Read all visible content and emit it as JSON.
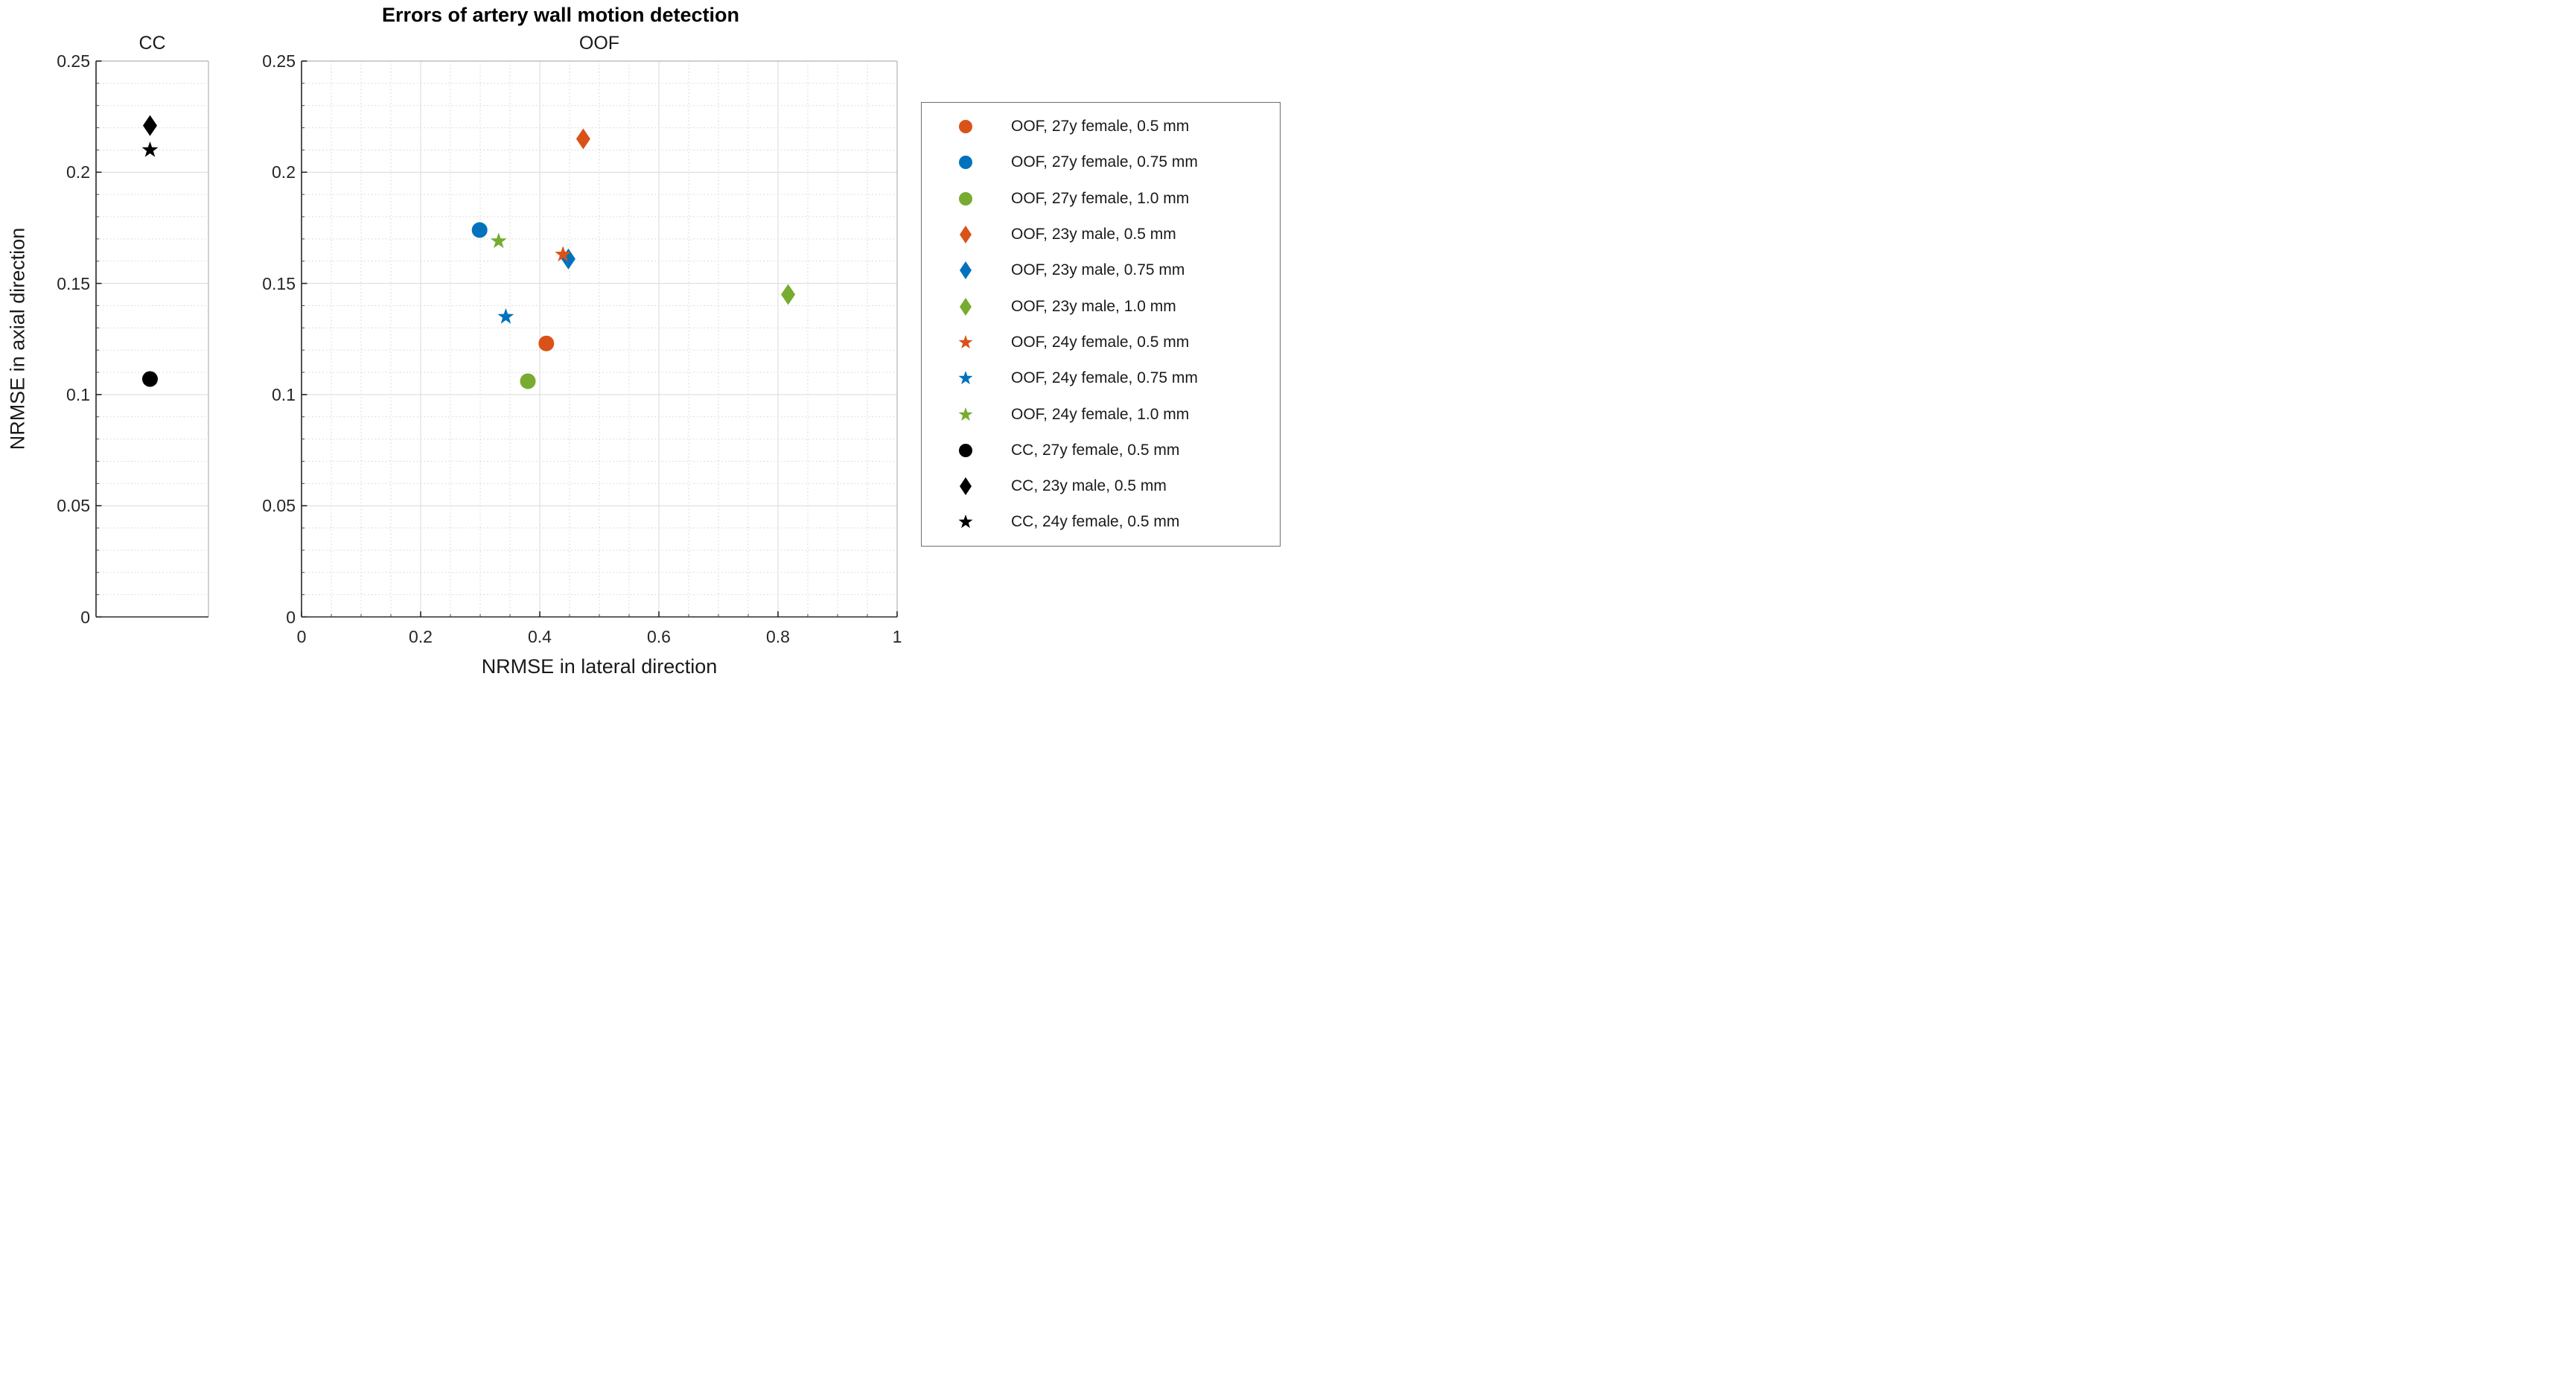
{
  "figure": {
    "title": "Errors of artery wall motion detection"
  },
  "axis_labels": {
    "x": "NRMSE in lateral direction",
    "y": "NRMSE in axial direction"
  },
  "palette": {
    "orange": "#D95319",
    "blue": "#0072BD",
    "green": "#77AC30",
    "black": "#000000"
  },
  "chart_data": [
    {
      "id": "cc",
      "type": "scatter",
      "title": "CC",
      "ylabel": "NRMSE in axial direction",
      "ylim": [
        0,
        0.25
      ],
      "yticks": [
        0,
        0.05,
        0.1,
        0.15,
        0.2,
        0.25
      ],
      "ytick_labels": [
        "0",
        "0.05",
        "0.1",
        "0.15",
        "0.2",
        "0.25"
      ],
      "y_minor_step": 0.01,
      "grid": "on",
      "points": [
        {
          "series": "CC, 27y female, 0.5 mm",
          "marker": "circle",
          "color": "#000000",
          "x": 0.48,
          "y": 0.107
        },
        {
          "series": "CC, 23y male, 0.5 mm",
          "marker": "diamond",
          "color": "#000000",
          "x": 0.48,
          "y": 0.221
        },
        {
          "series": "CC, 24y female, 0.5 mm",
          "marker": "star",
          "color": "#000000",
          "x": 0.48,
          "y": 0.21
        }
      ]
    },
    {
      "id": "oof",
      "type": "scatter",
      "title": "OOF",
      "xlabel": "NRMSE in lateral direction",
      "ylabel": "NRMSE in axial direction",
      "xlim": [
        0,
        1
      ],
      "ylim": [
        0,
        0.25
      ],
      "xticks": [
        0,
        0.2,
        0.4,
        0.6,
        0.8,
        1
      ],
      "xtick_labels": [
        "0",
        "0.2",
        "0.4",
        "0.6",
        "0.8",
        "1"
      ],
      "yticks": [
        0,
        0.05,
        0.1,
        0.15,
        0.2,
        0.25
      ],
      "ytick_labels": [
        "0",
        "0.05",
        "0.1",
        "0.15",
        "0.2",
        "0.25"
      ],
      "x_minor_step": 0.05,
      "y_minor_step": 0.01,
      "grid": "on",
      "points": [
        {
          "series": "OOF, 27y female, 0.5 mm",
          "marker": "circle",
          "color": "#D95319",
          "x": 0.411,
          "y": 0.123
        },
        {
          "series": "OOF, 27y female, 0.75 mm",
          "marker": "circle",
          "color": "#0072BD",
          "x": 0.299,
          "y": 0.174
        },
        {
          "series": "OOF, 27y female, 1.0 mm",
          "marker": "circle",
          "color": "#77AC30",
          "x": 0.38,
          "y": 0.106
        },
        {
          "series": "OOF, 23y male, 0.5 mm",
          "marker": "diamond",
          "color": "#D95319",
          "x": 0.473,
          "y": 0.215
        },
        {
          "series": "OOF, 23y male, 0.75 mm",
          "marker": "diamond",
          "color": "#0072BD",
          "x": 0.448,
          "y": 0.161
        },
        {
          "series": "OOF, 23y male, 1.0 mm",
          "marker": "diamond",
          "color": "#77AC30",
          "x": 0.817,
          "y": 0.145
        },
        {
          "series": "OOF, 24y female, 0.5 mm",
          "marker": "star",
          "color": "#D95319",
          "x": 0.439,
          "y": 0.163
        },
        {
          "series": "OOF, 24y female, 0.75 mm",
          "marker": "star",
          "color": "#0072BD",
          "x": 0.343,
          "y": 0.135
        },
        {
          "series": "OOF, 24y female, 1.0 mm",
          "marker": "star",
          "color": "#77AC30",
          "x": 0.331,
          "y": 0.169
        }
      ]
    }
  ],
  "legend": {
    "entries": [
      {
        "label": "OOF, 27y female, 0.5 mm",
        "marker": "circle",
        "color": "#D95319"
      },
      {
        "label": "OOF, 27y female, 0.75 mm",
        "marker": "circle",
        "color": "#0072BD"
      },
      {
        "label": "OOF, 27y female, 1.0 mm",
        "marker": "circle",
        "color": "#77AC30"
      },
      {
        "label": "OOF, 23y male, 0.5 mm",
        "marker": "diamond",
        "color": "#D95319"
      },
      {
        "label": "OOF, 23y male, 0.75 mm",
        "marker": "diamond",
        "color": "#0072BD"
      },
      {
        "label": "OOF, 23y male, 1.0 mm",
        "marker": "diamond",
        "color": "#77AC30"
      },
      {
        "label": "OOF, 24y female, 0.5 mm",
        "marker": "star",
        "color": "#D95319"
      },
      {
        "label": "OOF, 24y female, 0.75 mm",
        "marker": "star",
        "color": "#0072BD"
      },
      {
        "label": "OOF, 24y female, 1.0 mm",
        "marker": "star",
        "color": "#77AC30"
      },
      {
        "label": "CC, 27y female, 0.5 mm",
        "marker": "circle",
        "color": "#000000"
      },
      {
        "label": "CC, 23y male, 0.5 mm",
        "marker": "diamond",
        "color": "#000000"
      },
      {
        "label": "CC, 24y female, 0.5 mm",
        "marker": "star",
        "color": "#000000"
      }
    ]
  }
}
